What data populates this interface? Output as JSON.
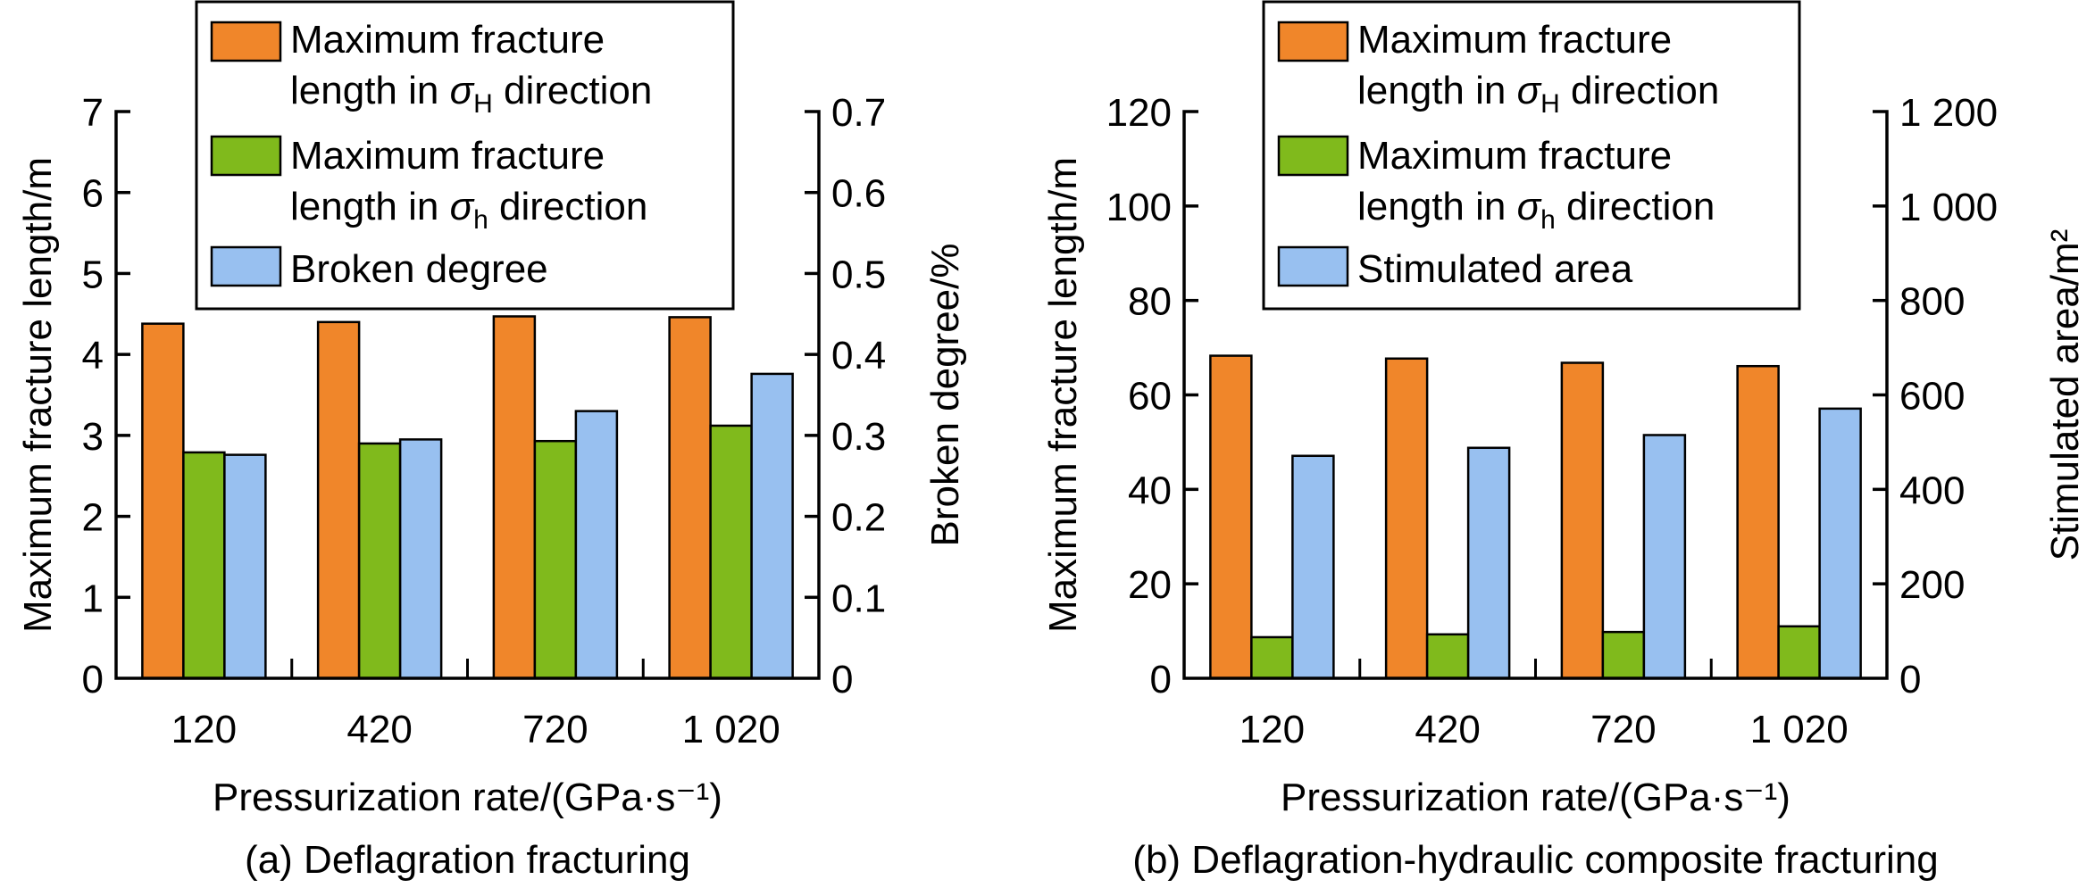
{
  "colors": {
    "orange": "#F0862A",
    "green": "#80BA1C",
    "blue": "#98C0F0"
  },
  "chart_data": [
    {
      "type": "bar",
      "caption": "(a) Deflagration fracturing",
      "xlabel": "Pressurization rate/(GPa·s⁻¹)",
      "ylabel": "Maximum fracture length/m",
      "ylabel_right": "Broken degree/%",
      "categories": [
        "120",
        "420",
        "720",
        "1 020"
      ],
      "ylim": [
        0,
        7
      ],
      "ylim_right": [
        0,
        0.7
      ],
      "yticks": [
        "0",
        "1",
        "2",
        "3",
        "4",
        "5",
        "6",
        "7"
      ],
      "yticks_right": [
        "0",
        "0.1",
        "0.2",
        "0.3",
        "0.4",
        "0.5",
        "0.6",
        "0.7"
      ],
      "legend_position": "top-center",
      "series": [
        {
          "name": "Maximum fracture length in σH direction",
          "legend": [
            {
              "pre": "Maximum fracture"
            },
            {
              "pre": "length in ",
              "sym": "σ",
              "sub": "H",
              "post": " direction"
            }
          ],
          "color": "orange",
          "axis": "left",
          "values": [
            4.38,
            4.4,
            4.47,
            4.46
          ]
        },
        {
          "name": "Maximum fracture length in σh direction",
          "legend": [
            {
              "pre": "Maximum fracture"
            },
            {
              "pre": "length in ",
              "sym": "σ",
              "sub": "h",
              "post": " direction"
            }
          ],
          "color": "green",
          "axis": "left",
          "values": [
            2.79,
            2.9,
            2.93,
            3.12
          ]
        },
        {
          "name": "Broken degree",
          "legend": [
            {
              "pre": "Broken degree"
            }
          ],
          "color": "blue",
          "axis": "right",
          "values": [
            0.276,
            0.295,
            0.33,
            0.376
          ]
        }
      ]
    },
    {
      "type": "bar",
      "caption": "(b) Deflagration-hydraulic composite fracturing",
      "xlabel": "Pressurization rate/(GPa·s⁻¹)",
      "ylabel": "Maximum fracture length/m",
      "ylabel_right": "Stimulated area/m²",
      "categories": [
        "120",
        "420",
        "720",
        "1 020"
      ],
      "ylim": [
        0,
        120
      ],
      "ylim_right": [
        0,
        1200
      ],
      "yticks": [
        "0",
        "20",
        "40",
        "60",
        "80",
        "100",
        "120"
      ],
      "yticks_right": [
        "0",
        "200",
        "400",
        "600",
        "800",
        "1 000",
        "1 200"
      ],
      "legend_position": "top-center",
      "series": [
        {
          "name": "Maximum fracture length in σH direction",
          "legend": [
            {
              "pre": "Maximum fracture"
            },
            {
              "pre": "length in ",
              "sym": "σ",
              "sub": "H",
              "post": " direction"
            }
          ],
          "color": "orange",
          "axis": "left",
          "values": [
            68.3,
            67.7,
            66.8,
            66.1
          ]
        },
        {
          "name": "Maximum fracture length in σh direction",
          "legend": [
            {
              "pre": "Maximum fracture"
            },
            {
              "pre": "length in ",
              "sym": "σ",
              "sub": "h",
              "post": " direction"
            }
          ],
          "color": "green",
          "axis": "left",
          "values": [
            8.7,
            9.3,
            9.8,
            11.0
          ]
        },
        {
          "name": "Stimulated area",
          "legend": [
            {
              "pre": "Stimulated area"
            }
          ],
          "color": "blue",
          "axis": "right",
          "values": [
            471,
            488,
            515,
            571
          ]
        }
      ]
    }
  ]
}
